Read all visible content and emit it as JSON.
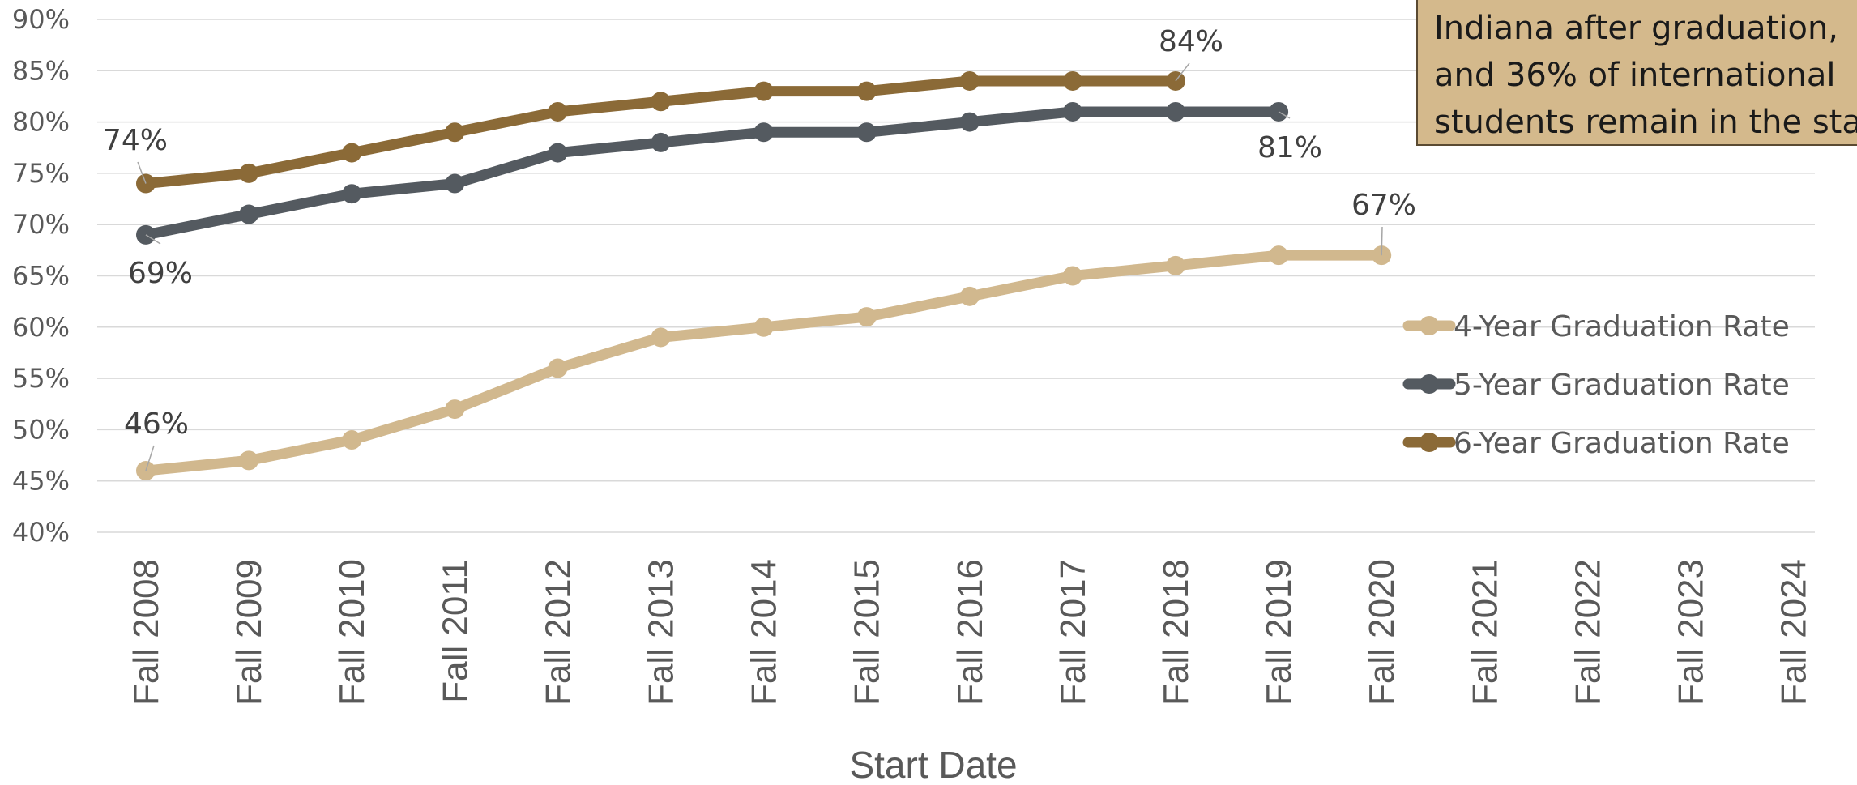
{
  "chart_data": {
    "type": "line",
    "categories": [
      "Fall 2008",
      "Fall 2009",
      "Fall 2010",
      "Fall 2011",
      "Fall 2012",
      "Fall 2013",
      "Fall 2014",
      "Fall 2015",
      "Fall 2016",
      "Fall 2017",
      "Fall 2018",
      "Fall 2019",
      "Fall 2020",
      "Fall 2021",
      "Fall 2022",
      "Fall 2023",
      "Fall 2024"
    ],
    "series": [
      {
        "name": "4-Year Graduation Rate",
        "color": "#d1b88e",
        "values": [
          46,
          47,
          49,
          52,
          56,
          59,
          60,
          61,
          63,
          65,
          66,
          67,
          67,
          null,
          null,
          null,
          null
        ]
      },
      {
        "name": "5-Year Graduation Rate",
        "color": "#545a60",
        "values": [
          69,
          71,
          73,
          74,
          77,
          78,
          79,
          79,
          80,
          81,
          81,
          81,
          null,
          null,
          null,
          null,
          null
        ]
      },
      {
        "name": "6-Year Graduation Rate",
        "color": "#8b6a37",
        "values": [
          74,
          75,
          77,
          79,
          81,
          82,
          83,
          83,
          84,
          84,
          84,
          null,
          null,
          null,
          null,
          null,
          null
        ]
      }
    ],
    "yticks": [
      "40%",
      "45%",
      "50%",
      "55%",
      "60%",
      "65%",
      "70%",
      "75%",
      "80%",
      "85%",
      "90%"
    ],
    "ylim": [
      40,
      90
    ],
    "xlabel": "Start Date",
    "ylabel": "",
    "grid": true,
    "legend_position": "right",
    "data_labels": [
      {
        "series": 0,
        "index": 0,
        "text": "46%"
      },
      {
        "series": 0,
        "index": 12,
        "text": "67%"
      },
      {
        "series": 1,
        "index": 0,
        "text": "69%"
      },
      {
        "series": 1,
        "index": 11,
        "text": "81%"
      },
      {
        "series": 2,
        "index": 0,
        "text": "74%"
      },
      {
        "series": 2,
        "index": 10,
        "text": "84%"
      }
    ]
  },
  "callout": {
    "lines": [
      "Indiana after graduation,",
      "and 36% of international",
      "students remain in the sta"
    ]
  }
}
